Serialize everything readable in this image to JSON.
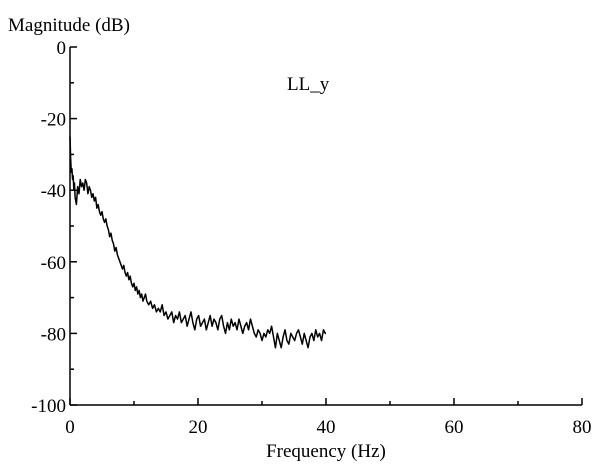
{
  "chart_data": {
    "type": "line",
    "title": "",
    "annotation": "LL_y",
    "xlabel": "Frequency (Hz)",
    "ylabel": "Magnitude (dB)",
    "xlim": [
      0,
      80
    ],
    "ylim": [
      -100,
      0
    ],
    "xticks": [
      0,
      20,
      40,
      60,
      80
    ],
    "yticks": [
      0,
      -20,
      -40,
      -60,
      -80,
      -100
    ],
    "xtick_labels": [
      "0",
      "20",
      "40",
      "60",
      "80"
    ],
    "ytick_labels": [
      "0",
      "-20",
      "-40",
      "-60",
      "-80",
      "-100"
    ],
    "grid": false,
    "line_color": "#000000",
    "series": [
      {
        "x": [
          0.0,
          0.1,
          0.2,
          0.3,
          0.4,
          0.5,
          0.6,
          0.7,
          0.8,
          1.0,
          1.2,
          1.4,
          1.6,
          1.8,
          2.0,
          2.2,
          2.4,
          2.6,
          2.8,
          3.0,
          3.2,
          3.4,
          3.6,
          3.8,
          4.0,
          4.2,
          4.4,
          4.6,
          4.8,
          5.0,
          5.2,
          5.4,
          5.6,
          5.8,
          6.0,
          6.2,
          6.4,
          6.6,
          6.8,
          7.0,
          7.2,
          7.4,
          7.6,
          7.8,
          8.0,
          8.2,
          8.4,
          8.6,
          8.8,
          9.0,
          9.2,
          9.4,
          9.6,
          9.8,
          10.0,
          10.2,
          10.4,
          10.6,
          10.8,
          11.0,
          11.2,
          11.4,
          11.6,
          11.8,
          12.0,
          12.3,
          12.6,
          12.9,
          13.2,
          13.5,
          13.8,
          14.1,
          14.4,
          14.7,
          15.0,
          15.3,
          15.6,
          15.9,
          16.2,
          16.5,
          16.8,
          17.1,
          17.4,
          17.7,
          18.0,
          18.3,
          18.6,
          18.9,
          19.2,
          19.5,
          19.8,
          20.1,
          20.4,
          20.7,
          21.0,
          21.3,
          21.6,
          21.9,
          22.2,
          22.5,
          22.8,
          23.1,
          23.4,
          23.7,
          24.0,
          24.3,
          24.6,
          24.9,
          25.2,
          25.5,
          25.8,
          26.1,
          26.4,
          26.7,
          27.0,
          27.3,
          27.6,
          27.9,
          28.2,
          28.5,
          28.8,
          29.1,
          29.4,
          29.7,
          30.0,
          30.3,
          30.6,
          30.9,
          31.2,
          31.5,
          31.8,
          32.1,
          32.4,
          32.7,
          33.0,
          33.3,
          33.6,
          33.9,
          34.2,
          34.5,
          34.8,
          35.1,
          35.4,
          35.7,
          36.0,
          36.3,
          36.6,
          36.9,
          37.2,
          37.5,
          37.8,
          38.1,
          38.4,
          38.7,
          39.0,
          39.3,
          39.6,
          39.9,
          40.0
        ],
        "y": [
          -25,
          -31,
          -35,
          -34,
          -37,
          -36,
          -40,
          -38,
          -42,
          -44,
          -39,
          -41,
          -37,
          -39,
          -38,
          -40,
          -37,
          -38,
          -41,
          -39,
          -40,
          -42,
          -41,
          -43,
          -42,
          -45,
          -44,
          -46,
          -47,
          -46,
          -48,
          -49,
          -48,
          -50,
          -51,
          -53,
          -52,
          -54,
          -55,
          -57,
          -56,
          -58,
          -59,
          -60,
          -61,
          -62,
          -61,
          -63,
          -64,
          -63,
          -65,
          -64,
          -66,
          -67,
          -66,
          -68,
          -67,
          -69,
          -68,
          -70,
          -69,
          -71,
          -70,
          -69,
          -71,
          -72,
          -71,
          -73,
          -72,
          -74,
          -73,
          -74,
          -72,
          -75,
          -74,
          -76,
          -75,
          -74,
          -77,
          -75,
          -76,
          -74,
          -77,
          -76,
          -75,
          -78,
          -76,
          -74,
          -77,
          -79,
          -76,
          -75,
          -78,
          -77,
          -76,
          -79,
          -77,
          -75,
          -78,
          -76,
          -77,
          -79,
          -76,
          -75,
          -78,
          -80,
          -77,
          -79,
          -76,
          -78,
          -77,
          -79,
          -76,
          -78,
          -80,
          -78,
          -77,
          -79,
          -76,
          -78,
          -80,
          -81,
          -79,
          -80,
          -82,
          -80,
          -81,
          -79,
          -80,
          -78,
          -81,
          -84,
          -80,
          -82,
          -84,
          -81,
          -79,
          -82,
          -83,
          -80,
          -81,
          -82,
          -80,
          -79,
          -81,
          -83,
          -80,
          -82,
          -84,
          -81,
          -80,
          -82,
          -79,
          -81,
          -80,
          -82,
          -79,
          -80,
          -80
        ]
      }
    ]
  }
}
